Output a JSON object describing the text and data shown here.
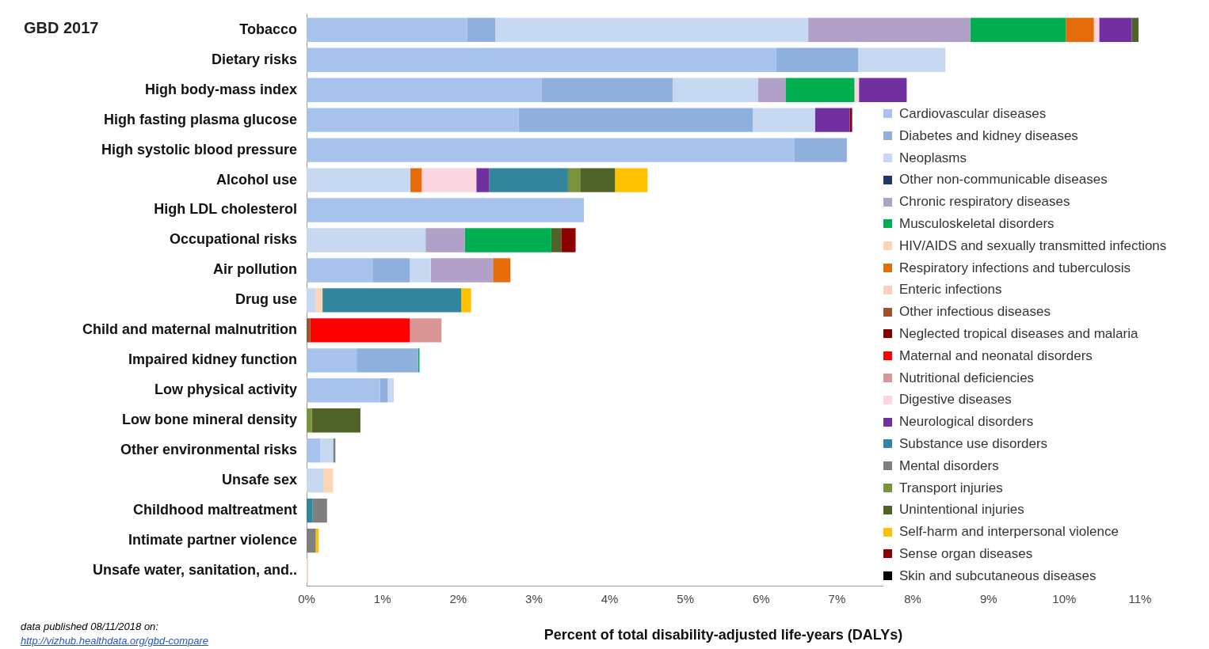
{
  "chart_data": {
    "type": "bar",
    "orientation": "horizontal",
    "stacked": true,
    "title": "GBD 2017",
    "xlabel": "Percent of total disability-adjusted life-years (DALYs)",
    "categories": [
      "Tobacco",
      "Dietary risks",
      "High body-mass index",
      "High fasting plasma glucose",
      "High systolic blood pressure",
      "Alcohol use",
      "High LDL cholesterol",
      "Occupational risks",
      "Air pollution",
      "Drug use",
      "Child and maternal malnutrition",
      "Impaired kidney function",
      "Low physical activity",
      "Low bone mineral density",
      "Other environmental risks",
      "Unsafe sex",
      "Childhood maltreatment",
      "Intimate partner violence",
      "Unsafe water, sanitation, and.."
    ],
    "xlim": [
      0,
      11
    ],
    "xticks": [
      {
        "value": 0,
        "label": "0%"
      },
      {
        "value": 1,
        "label": "1%"
      },
      {
        "value": 2,
        "label": "2%"
      },
      {
        "value": 3,
        "label": "3%"
      },
      {
        "value": 4,
        "label": "4%"
      },
      {
        "value": 5,
        "label": "5%"
      },
      {
        "value": 6,
        "label": "6%"
      },
      {
        "value": 7,
        "label": "7%"
      },
      {
        "value": 8,
        "label": "8%"
      },
      {
        "value": 9,
        "label": "9%"
      },
      {
        "value": 10,
        "label": "10%"
      },
      {
        "value": 11,
        "label": "11%"
      }
    ],
    "grid": false,
    "legend": "bottom right",
    "series": [
      {
        "name": "Cardiovascular diseases",
        "color": "#a7c3ec",
        "values": [
          2.12,
          6.2,
          3.1,
          2.8,
          6.44,
          null,
          3.66,
          null,
          0.87,
          null,
          null,
          0.66,
          0.97,
          null,
          0.18,
          null,
          null,
          null,
          null
        ]
      },
      {
        "name": "Diabetes and kidney diseases",
        "color": "#8fb0dc",
        "values": [
          0.37,
          1.08,
          1.73,
          3.09,
          0.69,
          null,
          null,
          null,
          0.49,
          null,
          null,
          0.81,
          0.1,
          null,
          null,
          null,
          null,
          null,
          null
        ]
      },
      {
        "name": "Neoplasms",
        "color": "#c6d9f1",
        "values": [
          4.13,
          1.15,
          1.13,
          0.82,
          null,
          1.37,
          null,
          1.57,
          0.28,
          0.12,
          null,
          null,
          0.08,
          null,
          0.17,
          0.22,
          null,
          null,
          null
        ]
      },
      {
        "name": "Other non-communicable diseases",
        "color": "#1f3864",
        "values": [
          null,
          null,
          null,
          null,
          null,
          null,
          null,
          null,
          null,
          null,
          null,
          null,
          null,
          null,
          null,
          null,
          null,
          null,
          null
        ]
      },
      {
        "name": "Chronic respiratory diseases",
        "color": "#b1a0c7",
        "values": [
          2.14,
          null,
          0.36,
          null,
          null,
          null,
          null,
          0.52,
          0.82,
          null,
          null,
          null,
          null,
          null,
          null,
          null,
          null,
          null,
          null
        ]
      },
      {
        "name": "Musculoskeletal disorders",
        "color": "#00b050",
        "values": [
          1.26,
          null,
          0.91,
          null,
          null,
          null,
          null,
          1.14,
          null,
          null,
          null,
          0.02,
          null,
          null,
          null,
          null,
          null,
          null,
          null
        ]
      },
      {
        "name": "HIV/AIDS and sexually transmitted infections",
        "color": "#fcd5b4",
        "values": [
          null,
          null,
          null,
          null,
          null,
          null,
          null,
          null,
          null,
          0.09,
          null,
          null,
          null,
          null,
          null,
          0.13,
          null,
          null,
          null
        ]
      },
      {
        "name": "Respiratory infections and tuberculosis",
        "color": "#e46c0a",
        "values": [
          0.37,
          null,
          null,
          null,
          null,
          0.15,
          null,
          null,
          0.23,
          null,
          null,
          null,
          null,
          null,
          null,
          null,
          null,
          null,
          null
        ]
      },
      {
        "name": "Enteric infections",
        "color": "#f8d0c0",
        "values": [
          null,
          null,
          null,
          null,
          null,
          null,
          null,
          null,
          null,
          null,
          null,
          null,
          null,
          null,
          null,
          null,
          null,
          null,
          0.02
        ]
      },
      {
        "name": "Other infectious diseases",
        "color": "#a0522d",
        "values": [
          null,
          null,
          null,
          null,
          null,
          null,
          null,
          null,
          null,
          null,
          0.05,
          null,
          null,
          null,
          null,
          null,
          null,
          null,
          null
        ]
      },
      {
        "name": "Neglected tropical diseases and malaria",
        "color": "#7f0000",
        "values": [
          null,
          null,
          null,
          null,
          null,
          null,
          null,
          null,
          null,
          null,
          null,
          null,
          null,
          null,
          null,
          null,
          null,
          null,
          null
        ]
      },
      {
        "name": "Maternal and neonatal disorders",
        "color": "#ff0000",
        "values": [
          null,
          null,
          null,
          null,
          null,
          null,
          null,
          null,
          null,
          null,
          1.31,
          null,
          null,
          null,
          null,
          null,
          null,
          null,
          null
        ]
      },
      {
        "name": "Nutritional deficiencies",
        "color": "#d99694",
        "values": [
          null,
          null,
          null,
          null,
          null,
          null,
          null,
          null,
          null,
          null,
          0.42,
          null,
          null,
          null,
          null,
          null,
          null,
          null,
          null
        ]
      },
      {
        "name": "Digestive diseases",
        "color": "#fbd5e0",
        "values": [
          0.07,
          null,
          0.06,
          null,
          null,
          0.72,
          null,
          null,
          null,
          null,
          null,
          null,
          null,
          null,
          null,
          null,
          null,
          null,
          null
        ]
      },
      {
        "name": "Neurological disorders",
        "color": "#7030a0",
        "values": [
          0.43,
          null,
          0.63,
          0.46,
          null,
          0.17,
          null,
          null,
          null,
          null,
          null,
          null,
          null,
          null,
          null,
          null,
          null,
          null,
          null
        ]
      },
      {
        "name": "Substance use disorders",
        "color": "#31859c",
        "values": [
          null,
          null,
          null,
          null,
          null,
          1.04,
          null,
          null,
          null,
          1.83,
          null,
          null,
          null,
          null,
          null,
          null,
          0.08,
          null,
          null
        ]
      },
      {
        "name": "Mental disorders",
        "color": "#7f7f7f",
        "values": [
          null,
          null,
          null,
          null,
          null,
          null,
          null,
          null,
          null,
          null,
          null,
          null,
          null,
          null,
          0.03,
          null,
          0.19,
          0.12,
          null
        ]
      },
      {
        "name": "Transport injuries",
        "color": "#77933c",
        "values": [
          null,
          null,
          null,
          null,
          null,
          0.16,
          null,
          null,
          null,
          null,
          null,
          null,
          null,
          0.07,
          null,
          null,
          null,
          null,
          null
        ]
      },
      {
        "name": "Unintentional injuries",
        "color": "#4f6228",
        "values": [
          0.09,
          null,
          null,
          null,
          null,
          0.46,
          null,
          0.13,
          null,
          null,
          null,
          null,
          null,
          0.64,
          null,
          null,
          null,
          null,
          null
        ]
      },
      {
        "name": "Self-harm and interpersonal violence",
        "color": "#ffc000",
        "values": [
          null,
          null,
          null,
          null,
          null,
          0.43,
          null,
          null,
          null,
          0.13,
          null,
          null,
          null,
          null,
          null,
          null,
          null,
          0.04,
          null
        ]
      },
      {
        "name": "Sense organ diseases",
        "color": "#8b0000",
        "values": [
          null,
          null,
          null,
          0.03,
          null,
          null,
          null,
          0.19,
          null,
          null,
          null,
          null,
          null,
          null,
          null,
          null,
          null,
          null,
          null
        ]
      },
      {
        "name": "Skin and subcutaneous diseases",
        "color": "#000000",
        "values": [
          null,
          null,
          null,
          null,
          null,
          null,
          null,
          null,
          null,
          null,
          null,
          null,
          null,
          null,
          null,
          null,
          null,
          null,
          null
        ]
      }
    ],
    "annotations": [
      "data published 08/11/2018 on:",
      "http://vizhub.healthdata.org/gbd-compare"
    ]
  }
}
